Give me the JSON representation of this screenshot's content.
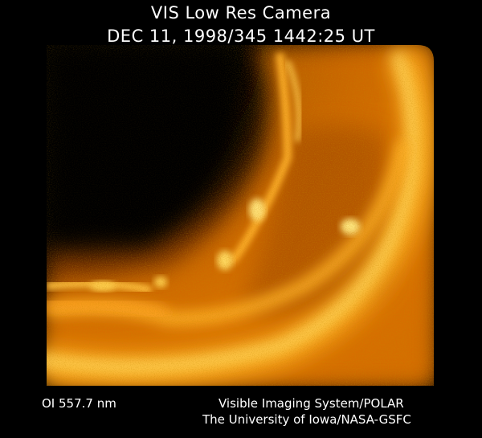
{
  "header": {
    "title": "VIS Low Res Camera",
    "subtitle": "DEC 11, 1998/345 1442:25 UT"
  },
  "footer": {
    "filter": "OI  557.7 nm",
    "credit_line1": "Visible Imaging System/POLAR",
    "credit_line2": "The University of Iowa/NASA-GSFC"
  },
  "image": {
    "subject": "aurora-oval",
    "colors": {
      "background": "#000000",
      "glow_bright": "#ffe27a",
      "glow_mid": "#ff9a10",
      "glow_dark": "#8a3a00"
    }
  }
}
